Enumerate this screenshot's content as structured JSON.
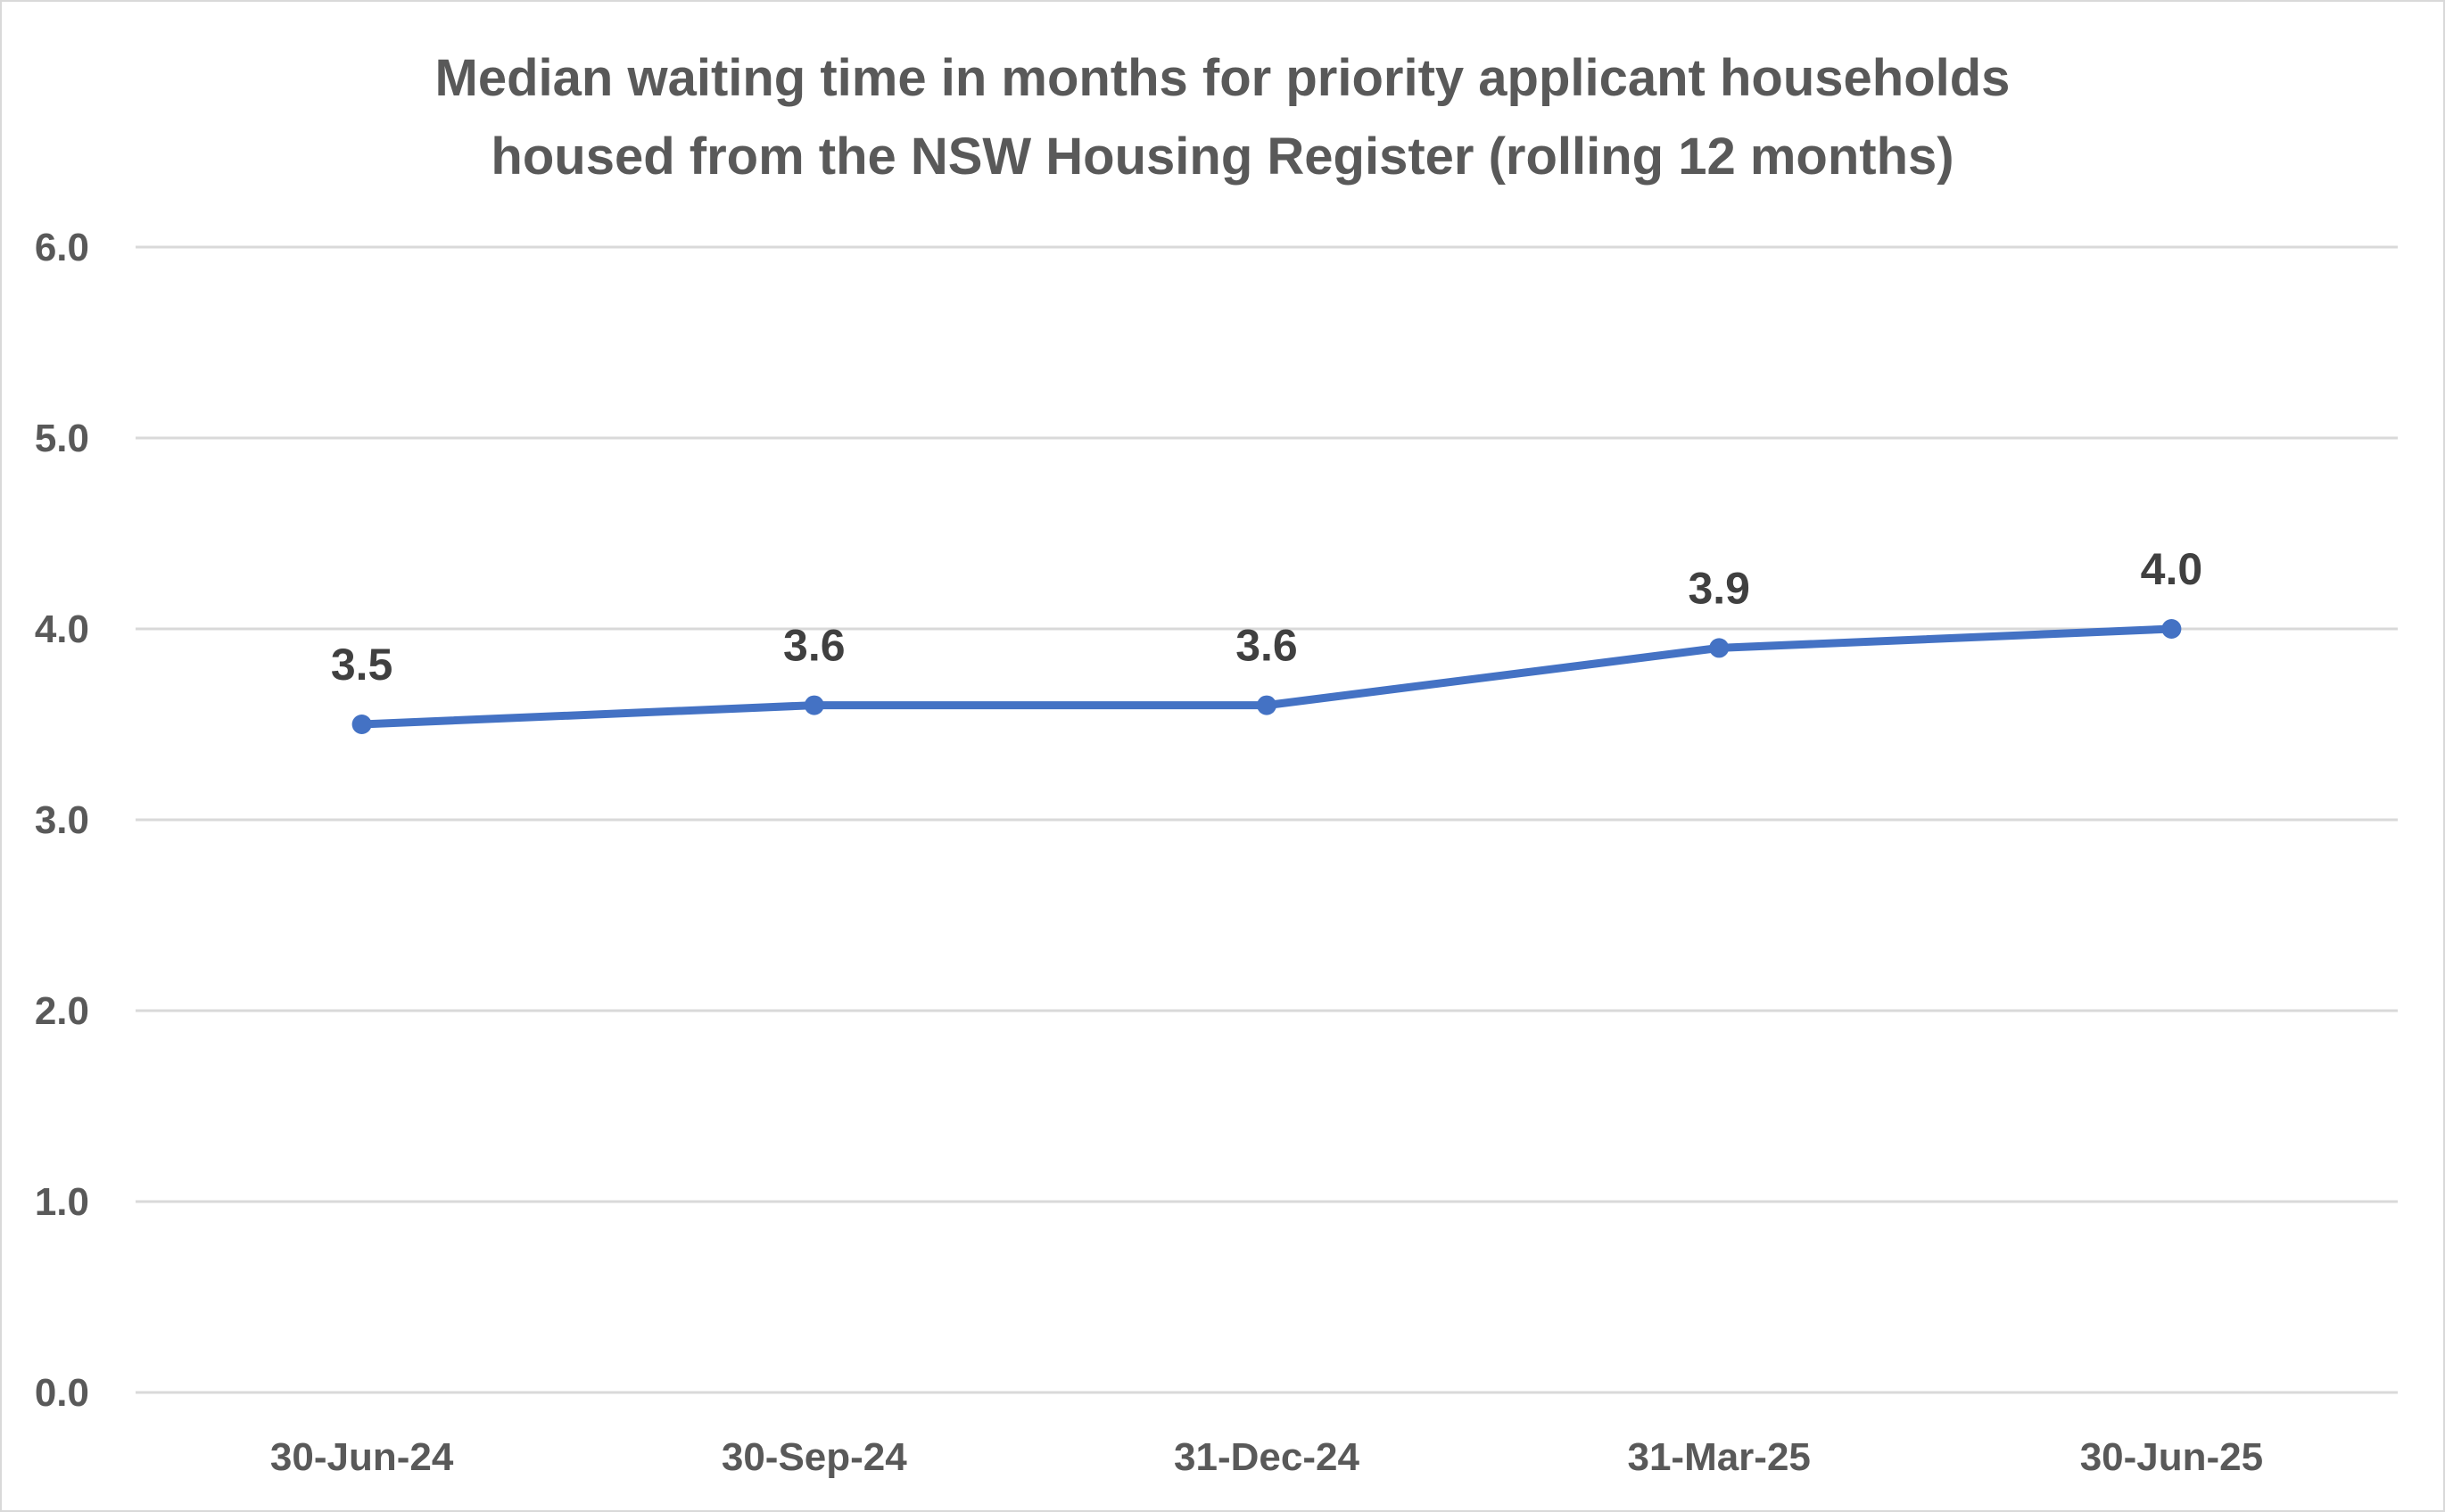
{
  "chart_data": {
    "type": "line",
    "title_lines": [
      "Median waiting time in months for priority applicant households",
      "housed from the NSW Housing Register (rolling 12 months)"
    ],
    "categories": [
      "30-Jun-24",
      "30-Sep-24",
      "31-Dec-24",
      "31-Mar-25",
      "30-Jun-25"
    ],
    "series": [
      {
        "values": [
          3.5,
          3.6,
          3.6,
          3.9,
          4.0
        ],
        "data_labels": [
          "3.5",
          "3.6",
          "3.6",
          "3.9",
          "4.0"
        ],
        "color": "#4472c4"
      }
    ],
    "yticks": [
      "0.0",
      "1.0",
      "2.0",
      "3.0",
      "4.0",
      "5.0",
      "6.0"
    ],
    "ylim": [
      0,
      6
    ],
    "grid": true,
    "legend": "none",
    "gridline_color": "#d9d9d9",
    "text_color": "#595959"
  }
}
